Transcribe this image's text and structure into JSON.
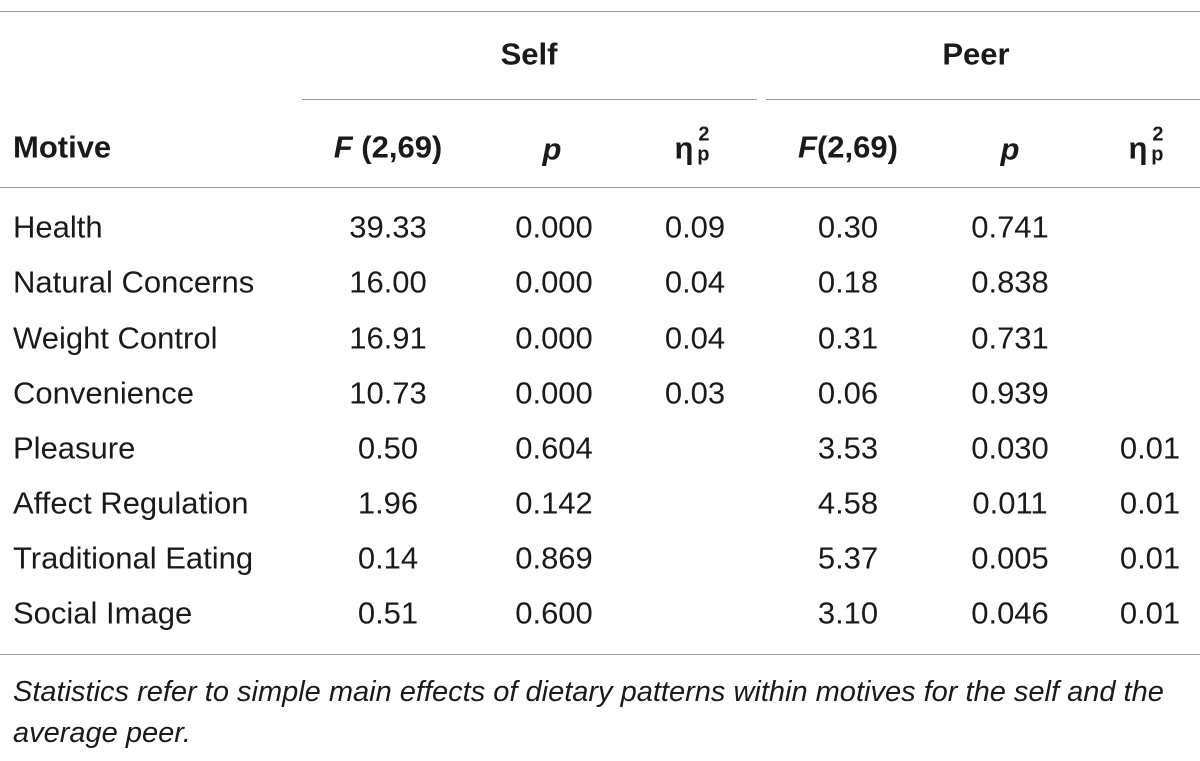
{
  "header": {
    "group_self": "Self",
    "group_peer": "Peer",
    "motive": "Motive",
    "f_self_italic": "F",
    "f_self_rest": " (2,69)",
    "p_self": "p",
    "eta_self_symbol": "η",
    "eta_self_sup": "2",
    "eta_self_sub": "p",
    "f_peer_italic": "F",
    "f_peer_rest": "(2,69)",
    "p_peer": "p",
    "eta_peer_symbol": "η",
    "eta_peer_sup": "2",
    "eta_peer_sub": "p"
  },
  "rows": [
    {
      "motive": "Health",
      "f_self": "39.33",
      "p_self": "0.000",
      "eta_self": "0.09",
      "f_peer": "0.30",
      "p_peer": "0.741",
      "eta_peer": ""
    },
    {
      "motive": "Natural Concerns",
      "f_self": "16.00",
      "p_self": "0.000",
      "eta_self": "0.04",
      "f_peer": "0.18",
      "p_peer": "0.838",
      "eta_peer": ""
    },
    {
      "motive": "Weight Control",
      "f_self": "16.91",
      "p_self": "0.000",
      "eta_self": "0.04",
      "f_peer": "0.31",
      "p_peer": "0.731",
      "eta_peer": ""
    },
    {
      "motive": "Convenience",
      "f_self": "10.73",
      "p_self": "0.000",
      "eta_self": "0.03",
      "f_peer": "0.06",
      "p_peer": "0.939",
      "eta_peer": ""
    },
    {
      "motive": "Pleasure",
      "f_self": "0.50",
      "p_self": "0.604",
      "eta_self": "",
      "f_peer": "3.53",
      "p_peer": "0.030",
      "eta_peer": "0.01"
    },
    {
      "motive": "Affect Regulation",
      "f_self": "1.96",
      "p_self": "0.142",
      "eta_self": "",
      "f_peer": "4.58",
      "p_peer": "0.011",
      "eta_peer": "0.01"
    },
    {
      "motive": "Traditional Eating",
      "f_self": "0.14",
      "p_self": "0.869",
      "eta_self": "",
      "f_peer": "5.37",
      "p_peer": "0.005",
      "eta_peer": "0.01"
    },
    {
      "motive": "Social Image",
      "f_self": "0.51",
      "p_self": "0.600",
      "eta_self": "",
      "f_peer": "3.10",
      "p_peer": "0.046",
      "eta_peer": "0.01"
    }
  ],
  "footnote": "Statistics refer to simple main effects of dietary patterns within motives for the self and the average peer."
}
